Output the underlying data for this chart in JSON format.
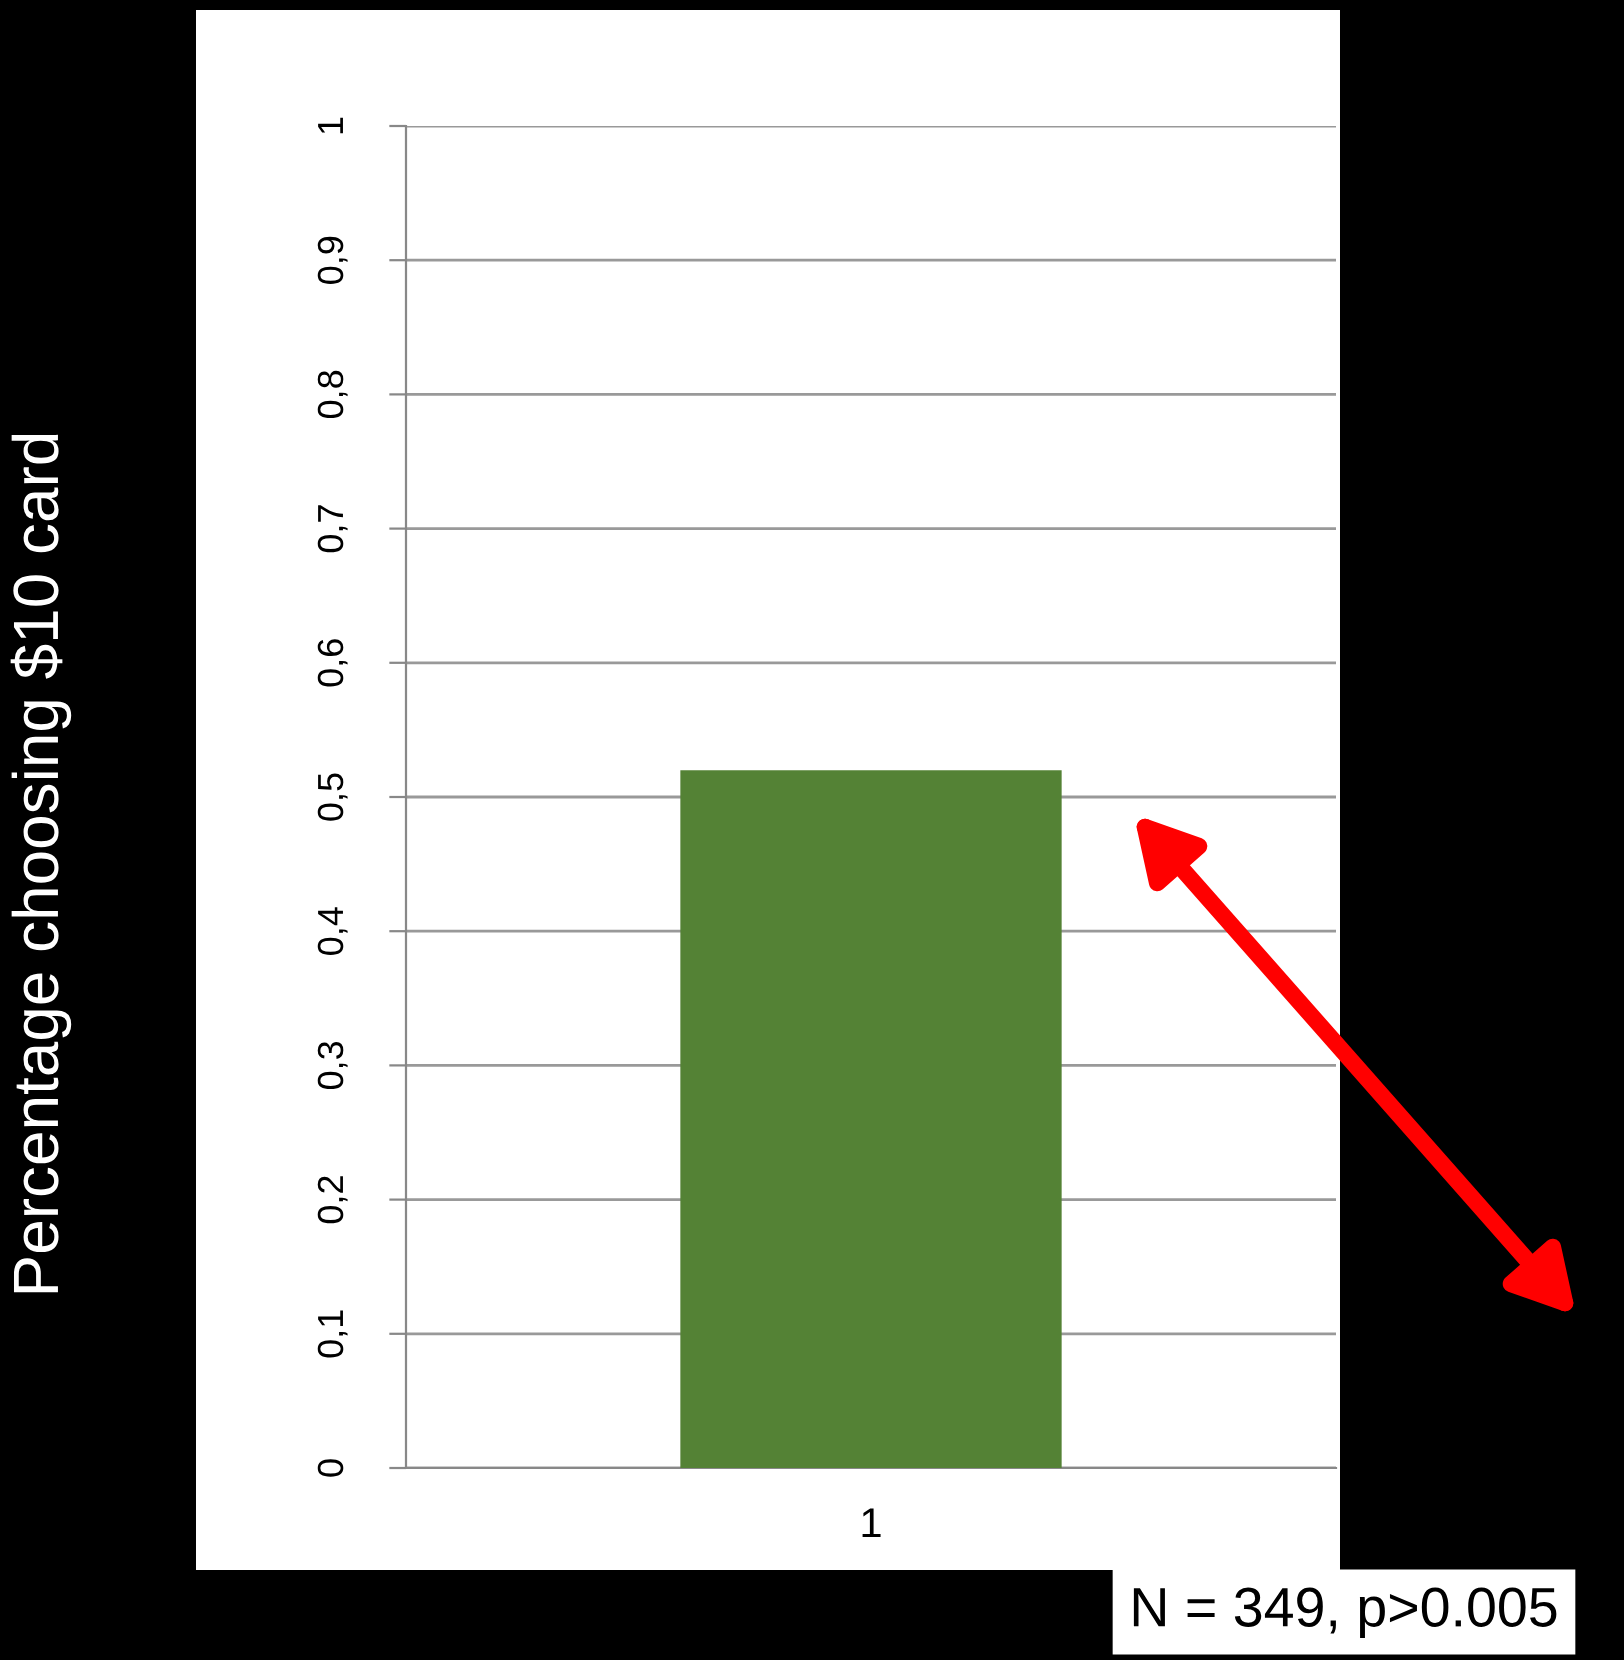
{
  "chart_data": {
    "type": "bar",
    "ylabel": "Percentage choosing $10 card",
    "categories": [
      "1"
    ],
    "values": [
      0.52
    ],
    "color": "#548235",
    "ylim": [
      0,
      1
    ],
    "yticks": [
      0,
      {
        "value": 0.1,
        "label": "0,1"
      },
      {
        "value": 0.2,
        "label": "0,2"
      },
      {
        "value": 0.3,
        "label": "0,3"
      },
      {
        "value": 0.4,
        "label": "0,4"
      },
      {
        "value": 0.5,
        "label": "0,5"
      },
      {
        "value": 0.6,
        "label": "0,6"
      },
      {
        "value": 0.7,
        "label": "0,7"
      },
      {
        "value": 0.8,
        "label": "0,8"
      },
      {
        "value": 0.9,
        "label": "0,9"
      },
      1
    ],
    "grid": "y",
    "annotations": [
      "N = 349, p>0.005"
    ]
  }
}
